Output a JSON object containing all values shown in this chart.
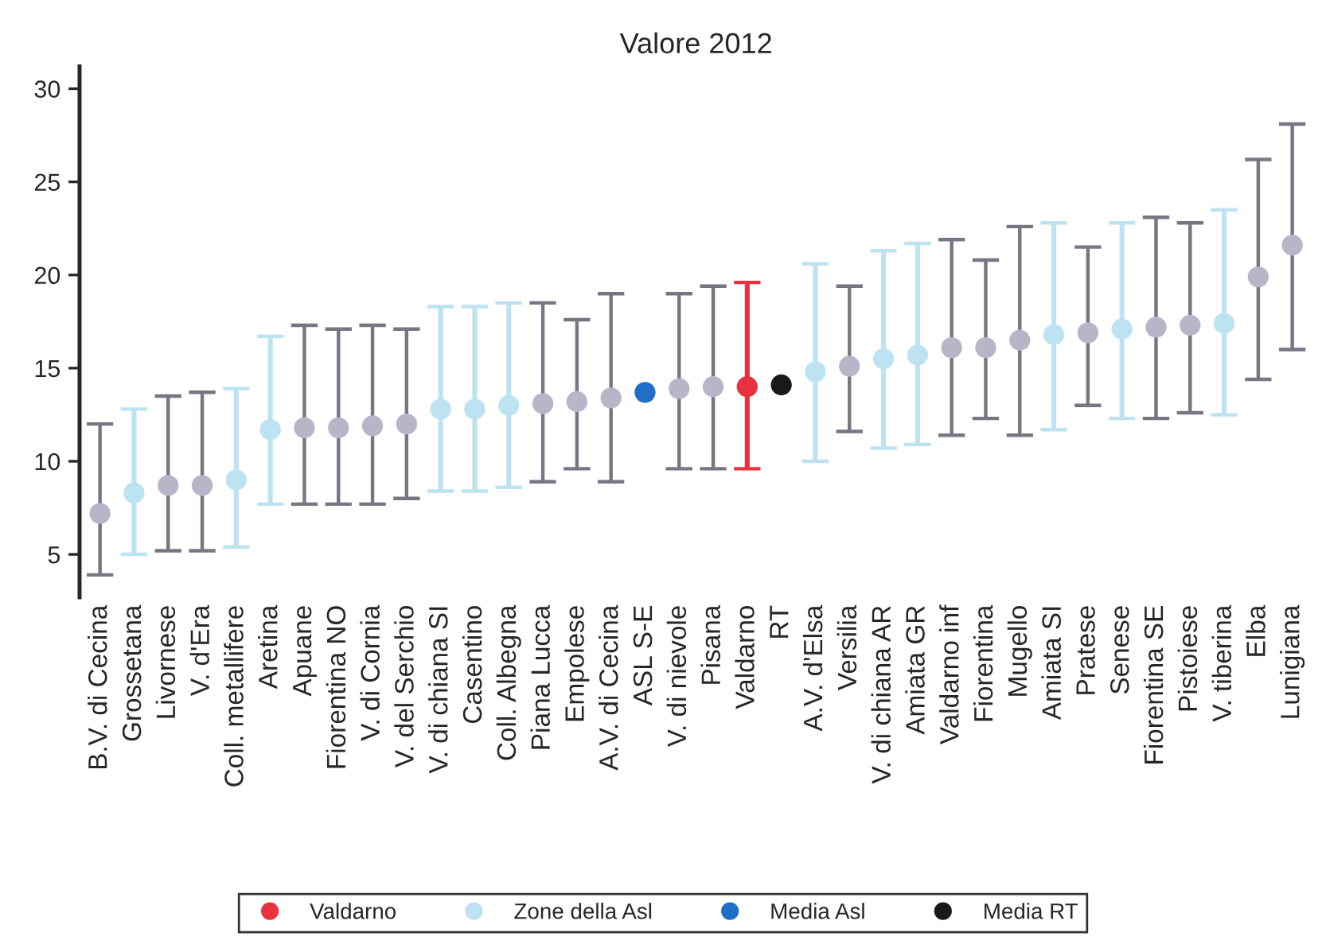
{
  "chart_data": {
    "type": "scatter",
    "title": "Valore 2012",
    "categories": [
      "B.V. di Cecina",
      "Grossetana",
      "Livornese",
      "V. d'Era",
      "Coll. metallifere",
      "Aretina",
      "Apuane",
      "Fiorentina NO",
      "V. di Cornia",
      "V. del Serchio",
      "V. di chiana SI",
      "Casentino",
      "Coll. Albegna",
      "Piana Lucca",
      "Empolese",
      "A.V. di Cecina",
      "ASL S-E",
      "V. di nievole",
      "Pisana",
      "Valdarno",
      "RT",
      "A.V. d'Elsa",
      "Versilia",
      "V. di chiana AR",
      "Amiata GR",
      "Valdarno inf",
      "Fiorentina",
      "Mugello",
      "Amiata SI",
      "Pratese",
      "Senese",
      "Fiorentina SE",
      "Pistoiese",
      "V. tiberina",
      "Elba",
      "Lunigiana"
    ],
    "series": [
      {
        "color": "#b9b5c9",
        "values": [
          7.2,
          null,
          8.7,
          8.7,
          null,
          null,
          11.8,
          11.8,
          11.9,
          12.0,
          null,
          null,
          null,
          13.1,
          13.2,
          13.4,
          null,
          13.9,
          14.0,
          null,
          null,
          null,
          15.1,
          null,
          null,
          16.1,
          16.1,
          16.5,
          null,
          16.9,
          null,
          17.2,
          17.3,
          null,
          19.9,
          21.6
        ],
        "errors": [
          [
            3.9,
            12.0
          ],
          null,
          [
            5.2,
            13.5
          ],
          [
            5.2,
            13.7
          ],
          null,
          null,
          [
            7.7,
            17.3
          ],
          [
            7.7,
            17.1
          ],
          [
            7.7,
            17.3
          ],
          [
            8.0,
            17.1
          ],
          null,
          null,
          null,
          [
            8.9,
            18.5
          ],
          [
            9.6,
            17.6
          ],
          [
            8.9,
            19.0
          ],
          null,
          [
            9.6,
            19.0
          ],
          [
            9.6,
            19.4
          ],
          null,
          null,
          null,
          [
            11.6,
            19.4
          ],
          null,
          null,
          [
            11.4,
            21.9
          ],
          [
            12.3,
            20.8
          ],
          [
            11.4,
            22.6
          ],
          null,
          [
            13.0,
            21.5
          ],
          null,
          [
            12.3,
            23.1
          ],
          [
            12.6,
            22.8
          ],
          null,
          [
            14.4,
            26.2
          ],
          [
            16.0,
            28.1
          ]
        ]
      },
      {
        "name": "Valdarno",
        "color": "#e8333f",
        "values": [
          null,
          null,
          null,
          null,
          null,
          null,
          null,
          null,
          null,
          null,
          null,
          null,
          null,
          null,
          null,
          null,
          null,
          null,
          null,
          14.0,
          null,
          null,
          null,
          null,
          null,
          null,
          null,
          null,
          null,
          null,
          null,
          null,
          null,
          null,
          null,
          null
        ],
        "errors": [
          null,
          null,
          null,
          null,
          null,
          null,
          null,
          null,
          null,
          null,
          null,
          null,
          null,
          null,
          null,
          null,
          null,
          null,
          null,
          [
            9.6,
            19.6
          ],
          null,
          null,
          null,
          null,
          null,
          null,
          null,
          null,
          null,
          null,
          null,
          null,
          null,
          null,
          null,
          null
        ]
      },
      {
        "name": "Zone della Asl",
        "color": "#bde3f3",
        "values": [
          null,
          8.3,
          null,
          null,
          9.0,
          11.7,
          null,
          null,
          null,
          null,
          12.8,
          12.8,
          13.0,
          null,
          null,
          null,
          null,
          null,
          null,
          null,
          null,
          14.8,
          null,
          15.5,
          15.7,
          null,
          null,
          null,
          16.8,
          null,
          17.1,
          null,
          null,
          17.4,
          null,
          null
        ],
        "errors": [
          null,
          [
            5.0,
            12.8
          ],
          null,
          null,
          [
            5.4,
            13.9
          ],
          [
            7.7,
            16.7
          ],
          null,
          null,
          null,
          null,
          [
            8.4,
            18.3
          ],
          [
            8.4,
            18.3
          ],
          [
            8.6,
            18.5
          ],
          null,
          null,
          null,
          null,
          null,
          null,
          null,
          null,
          [
            10.0,
            20.6
          ],
          null,
          [
            10.7,
            21.3
          ],
          [
            10.9,
            21.7
          ],
          null,
          null,
          null,
          [
            11.7,
            22.8
          ],
          null,
          [
            12.3,
            22.8
          ],
          null,
          null,
          [
            12.5,
            23.5
          ],
          null,
          null
        ]
      },
      {
        "name": "Media Asl",
        "color": "#1f6fc8",
        "values": [
          null,
          null,
          null,
          null,
          null,
          null,
          null,
          null,
          null,
          null,
          null,
          null,
          null,
          null,
          null,
          null,
          13.7,
          null,
          null,
          null,
          null,
          null,
          null,
          null,
          null,
          null,
          null,
          null,
          null,
          null,
          null,
          null,
          null,
          null,
          null,
          null
        ]
      },
      {
        "name": "Media RT",
        "color": "#1a1a1a",
        "values": [
          null,
          null,
          null,
          null,
          null,
          null,
          null,
          null,
          null,
          null,
          null,
          null,
          null,
          null,
          null,
          null,
          null,
          null,
          null,
          null,
          14.1,
          null,
          null,
          null,
          null,
          null,
          null,
          null,
          null,
          null,
          null,
          null,
          null,
          null,
          null,
          null
        ]
      }
    ],
    "ylim": [
      2.7,
      31.2
    ],
    "yticks": [
      5,
      10,
      15,
      20,
      25,
      30
    ],
    "grid": false,
    "legend": "bottom",
    "marker": "circle"
  }
}
